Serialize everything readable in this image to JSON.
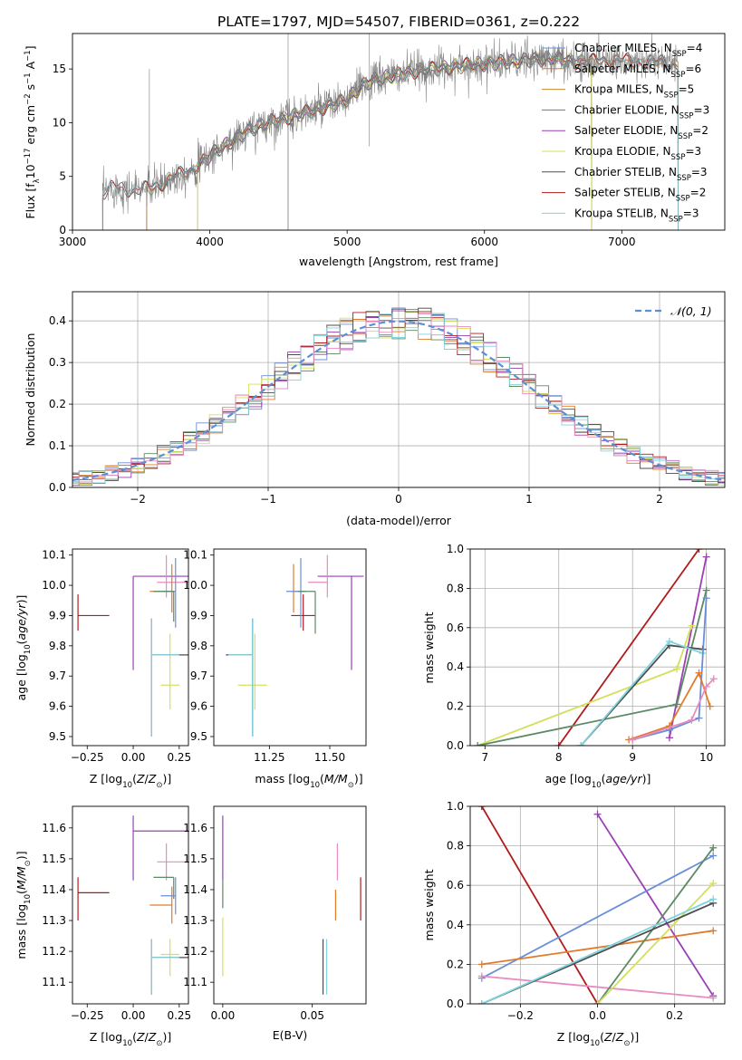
{
  "figure_title": "PLATE=1797, MJD=54507, FIBERID=0361, z=0.222",
  "colors": {
    "Chabrier MILES": "#6a8fd8",
    "Salpeter MILES": "#e07b2c",
    "Kroupa MILES": "#c9872f",
    "Chabrier ELODIE": "#5b8a64",
    "Salpeter ELODIE": "#9b3fb5",
    "Kroupa ELODIE": "#d4e05a",
    "Chabrier STELIB": "#4d4d4d",
    "Salpeter STELIB": "#b01c1c",
    "Kroupa STELIB": "#7fd3e0",
    "extra pink": "#e88bc0",
    "gaussian": "#5b8fd8"
  },
  "legend": [
    {
      "key": "Chabrier MILES",
      "label": "Chabrier MILES, N",
      "n": "4"
    },
    {
      "key": "Salpeter MILES",
      "label": "Salpeter MILES, N",
      "n": "6"
    },
    {
      "key": "Kroupa MILES",
      "label": "Kroupa MILES, N",
      "n": "5"
    },
    {
      "key": "Chabrier ELODIE",
      "label": "Chabrier ELODIE, N",
      "n": "3"
    },
    {
      "key": "Salpeter ELODIE",
      "label": "Salpeter ELODIE, N",
      "n": "2"
    },
    {
      "key": "Kroupa ELODIE",
      "label": "Kroupa ELODIE, N",
      "n": "3"
    },
    {
      "key": "Chabrier STELIB",
      "label": "Chabrier STELIB, N",
      "n": "3"
    },
    {
      "key": "Salpeter STELIB",
      "label": "Salpeter STELIB, N",
      "n": "2"
    },
    {
      "key": "Kroupa STELIB",
      "label": "Kroupa STELIB, N",
      "n": "3"
    }
  ],
  "chart_data": [
    {
      "id": "spectrum",
      "type": "line",
      "xlabel": "wavelength [Angstrom, rest frame]",
      "ylabel": "Flux [f",
      "xlim": [
        3000,
        7750
      ],
      "ylim": [
        0,
        18.3
      ],
      "xticks": [
        3000,
        4000,
        5000,
        6000,
        7000
      ],
      "yticks": [
        0,
        5,
        10,
        15
      ],
      "continuum": [
        [
          3220,
          3.4
        ],
        [
          3300,
          4.0
        ],
        [
          3450,
          3.7
        ],
        [
          3550,
          3.9
        ],
        [
          3650,
          4.3
        ],
        [
          3750,
          5.0
        ],
        [
          3850,
          5.6
        ],
        [
          3950,
          6.4
        ],
        [
          4050,
          7.4
        ],
        [
          4150,
          8.2
        ],
        [
          4300,
          9.4
        ],
        [
          4450,
          10.1
        ],
        [
          4600,
          10.6
        ],
        [
          4800,
          11.3
        ],
        [
          5000,
          12.1
        ],
        [
          5100,
          13.4
        ],
        [
          5200,
          14.0
        ],
        [
          5350,
          14.4
        ],
        [
          5500,
          14.8
        ],
        [
          5700,
          15.1
        ],
        [
          5900,
          15.4
        ],
        [
          6100,
          15.6
        ],
        [
          6300,
          15.8
        ],
        [
          6500,
          16.0
        ],
        [
          6700,
          15.6
        ],
        [
          6900,
          15.9
        ],
        [
          7100,
          15.7
        ],
        [
          7300,
          15.6
        ],
        [
          7400,
          15.5
        ]
      ]
    },
    {
      "id": "residuals",
      "type": "area",
      "xlabel": "(data-model)/error",
      "ylabel": "Normed distribution",
      "xlim": [
        -2.5,
        2.5
      ],
      "ylim": [
        0,
        0.47
      ],
      "xticks": [
        -2,
        -1,
        0,
        1,
        2
      ],
      "yticks": [
        0.0,
        0.1,
        0.2,
        0.3,
        0.4
      ],
      "legend_label": "𝒩(0, 1)",
      "grid": true
    },
    {
      "id": "age_vs_Z",
      "type": "scatter",
      "xlabel": "Z [log",
      "ylabel": "age  [log",
      "xlim": [
        -0.33,
        0.3
      ],
      "ylim": [
        9.47,
        10.12
      ],
      "xticks": [
        -0.25,
        0.0,
        0.25
      ],
      "yticks": [
        9.5,
        9.6,
        9.7,
        9.8,
        9.9,
        10.0,
        10.1
      ],
      "points": [
        {
          "key": "Salpeter STELIB",
          "x": -0.3,
          "y": 9.9,
          "xerr": [
            0.0,
            0.17
          ],
          "yerr": [
            0.05,
            0.07
          ]
        },
        {
          "key": "Salpeter ELODIE",
          "x": 0.0,
          "y": 10.03,
          "xerr": [
            0.0,
            0.3
          ],
          "yerr": [
            0.31,
            0.0
          ]
        },
        {
          "key": "extra pink",
          "x": 0.18,
          "y": 10.01,
          "xerr": [
            0.05,
            0.12
          ],
          "yerr": [
            0.05,
            0.09
          ]
        },
        {
          "key": "Salpeter MILES",
          "x": 0.21,
          "y": 9.98,
          "xerr": [
            0.12,
            0.0
          ],
          "yerr": [
            0.07,
            0.09
          ]
        },
        {
          "key": "Chabrier MILES",
          "x": 0.23,
          "y": 9.98,
          "xerr": [
            0.08,
            0.0
          ],
          "yerr": [
            0.12,
            0.11
          ]
        },
        {
          "key": "Chabrier ELODIE",
          "x": 0.22,
          "y": 9.98,
          "xerr": [
            0.11,
            0.0
          ],
          "yerr": [
            0.1,
            0.0
          ]
        },
        {
          "key": "Kroupa ELODIE",
          "x": 0.2,
          "y": 9.67,
          "xerr": [
            0.05,
            0.05
          ],
          "yerr": [
            0.08,
            0.17
          ]
        },
        {
          "key": "Chabrier STELIB",
          "x": 0.1,
          "y": 9.77,
          "xerr": [
            0.0,
            0.2
          ],
          "yerr": [
            0.27,
            0.12
          ]
        },
        {
          "key": "Kroupa STELIB",
          "x": 0.1,
          "y": 9.77,
          "xerr": [
            0.0,
            0.15
          ],
          "yerr": [
            0.27,
            0.12
          ]
        }
      ]
    },
    {
      "id": "age_vs_mass",
      "type": "scatter",
      "xlabel": "mass [log",
      "ylabel": "",
      "xlim": [
        11.02,
        11.65
      ],
      "ylim": [
        9.47,
        10.12
      ],
      "xticks": [
        11.25,
        11.5
      ],
      "yticks": [
        9.5,
        9.6,
        9.7,
        9.8,
        9.9,
        10.0,
        10.1
      ],
      "points": [
        {
          "key": "Salpeter STELIB",
          "x": 11.39,
          "y": 9.9,
          "xerr": [
            0.05,
            0.05
          ],
          "yerr": [
            0.05,
            0.07
          ]
        },
        {
          "key": "Salpeter ELODIE",
          "x": 11.59,
          "y": 10.03,
          "xerr": [
            0.14,
            0.05
          ],
          "yerr": [
            0.31,
            0.0
          ]
        },
        {
          "key": "extra pink",
          "x": 11.49,
          "y": 10.01,
          "xerr": [
            0.08,
            0.0
          ],
          "yerr": [
            0.05,
            0.09
          ]
        },
        {
          "key": "Salpeter MILES",
          "x": 11.35,
          "y": 9.98,
          "xerr": [
            0.0,
            0.05
          ],
          "yerr": [
            0.07,
            0.09
          ]
        },
        {
          "key": "Chabrier MILES",
          "x": 11.38,
          "y": 9.98,
          "xerr": [
            0.06,
            0.02
          ],
          "yerr": [
            0.12,
            0.11
          ]
        },
        {
          "key": "Chabrier ELODIE",
          "x": 11.44,
          "y": 9.98,
          "xerr": [
            0.07,
            0.0
          ],
          "yerr": [
            0.14,
            0.0
          ]
        },
        {
          "key": "Kroupa ELODIE",
          "x": 11.19,
          "y": 9.67,
          "xerr": [
            0.07,
            0.05
          ],
          "yerr": [
            0.08,
            0.17
          ]
        },
        {
          "key": "Chabrier STELIB",
          "x": 11.18,
          "y": 9.77,
          "xerr": [
            0.11,
            0.0
          ],
          "yerr": [
            0.27,
            0.12
          ]
        },
        {
          "key": "Kroupa STELIB",
          "x": 11.18,
          "y": 9.77,
          "xerr": [
            0.1,
            0.0
          ],
          "yerr": [
            0.27,
            0.12
          ]
        }
      ]
    },
    {
      "id": "weight_vs_age",
      "type": "line",
      "xlabel": "age  [log",
      "ylabel": "mass weight",
      "xlim": [
        6.8,
        10.25
      ],
      "ylim": [
        0,
        1.0
      ],
      "xticks": [
        7,
        8,
        9,
        10
      ],
      "yticks": [
        0.0,
        0.2,
        0.4,
        0.6,
        0.8,
        1.0
      ],
      "grid": true,
      "series": [
        {
          "key": "Salpeter STELIB",
          "x": [
            8.0,
            9.9
          ],
          "y": [
            0.0,
            1.0
          ]
        },
        {
          "key": "Salpeter ELODIE",
          "x": [
            9.5,
            10.0
          ],
          "y": [
            0.04,
            0.96
          ]
        },
        {
          "key": "Kroupa ELODIE",
          "x": [
            6.9,
            9.6,
            9.8
          ],
          "y": [
            0.0,
            0.39,
            0.61
          ]
        },
        {
          "key": "Chabrier ELODIE",
          "x": [
            6.9,
            9.6,
            10.0
          ],
          "y": [
            0.0,
            0.21,
            0.79
          ]
        },
        {
          "key": "Chabrier STELIB",
          "x": [
            8.3,
            9.5,
            9.95
          ],
          "y": [
            0.0,
            0.51,
            0.49
          ]
        },
        {
          "key": "Kroupa STELIB",
          "x": [
            8.3,
            9.5,
            9.95
          ],
          "y": [
            0.0,
            0.53,
            0.47
          ]
        },
        {
          "key": "Chabrier MILES",
          "x": [
            9.0,
            9.5,
            9.9,
            10.0
          ],
          "y": [
            0.03,
            0.08,
            0.14,
            0.75
          ]
        },
        {
          "key": "Salpeter MILES",
          "x": [
            8.95,
            9.5,
            9.9,
            10.05
          ],
          "y": [
            0.03,
            0.1,
            0.37,
            0.2
          ]
        },
        {
          "key": "extra pink",
          "x": [
            9.0,
            9.8,
            10.0,
            10.1
          ],
          "y": [
            0.03,
            0.13,
            0.3,
            0.34
          ]
        }
      ]
    },
    {
      "id": "mass_vs_Z",
      "type": "scatter",
      "xlabel": "Z [log",
      "ylabel": "mass [log",
      "xlim": [
        -0.33,
        0.3
      ],
      "ylim": [
        11.03,
        11.67
      ],
      "xticks": [
        -0.25,
        0.0,
        0.25
      ],
      "yticks": [
        11.1,
        11.2,
        11.3,
        11.4,
        11.5,
        11.6
      ],
      "points": [
        {
          "key": "Salpeter STELIB",
          "x": -0.3,
          "y": 11.39,
          "xerr": [
            0.0,
            0.17
          ],
          "yerr": [
            0.09,
            0.05
          ]
        },
        {
          "key": "Salpeter ELODIE",
          "x": 0.0,
          "y": 11.59,
          "xerr": [
            0.0,
            0.3
          ],
          "yerr": [
            0.16,
            0.05
          ]
        },
        {
          "key": "extra pink",
          "x": 0.18,
          "y": 11.49,
          "xerr": [
            0.05,
            0.12
          ],
          "yerr": [
            0.06,
            0.06
          ]
        },
        {
          "key": "Chabrier ELODIE",
          "x": 0.22,
          "y": 11.44,
          "xerr": [
            0.11,
            0.0
          ],
          "yerr": [
            0.07,
            0.0
          ]
        },
        {
          "key": "Chabrier MILES",
          "x": 0.23,
          "y": 11.38,
          "xerr": [
            0.08,
            0.0
          ],
          "yerr": [
            0.06,
            0.06
          ]
        },
        {
          "key": "Salpeter MILES",
          "x": 0.21,
          "y": 11.35,
          "xerr": [
            0.12,
            0.0
          ],
          "yerr": [
            0.06,
            0.06
          ]
        },
        {
          "key": "Kroupa ELODIE",
          "x": 0.2,
          "y": 11.19,
          "xerr": [
            0.05,
            0.05
          ],
          "yerr": [
            0.07,
            0.05
          ]
        },
        {
          "key": "Chabrier STELIB",
          "x": 0.1,
          "y": 11.18,
          "xerr": [
            0.0,
            0.2
          ],
          "yerr": [
            0.12,
            0.06
          ]
        },
        {
          "key": "Kroupa STELIB",
          "x": 0.1,
          "y": 11.18,
          "xerr": [
            0.0,
            0.15
          ],
          "yerr": [
            0.12,
            0.06
          ]
        }
      ]
    },
    {
      "id": "mass_vs_ebv",
      "type": "scatter",
      "xlabel": "E(B-V)",
      "ylabel": "",
      "xlim": [
        -0.005,
        0.08
      ],
      "ylim": [
        11.03,
        11.67
      ],
      "xticks": [
        0.0,
        0.05
      ],
      "yticks": [
        11.1,
        11.2,
        11.3,
        11.4,
        11.5,
        11.6
      ],
      "points": [
        {
          "key": "Salpeter ELODIE",
          "x": 0.0,
          "y": 11.59,
          "yerr": [
            0.16,
            0.05
          ]
        },
        {
          "key": "Chabrier ELODIE",
          "x": 0.0,
          "y": 11.4,
          "yerr": [
            0.06,
            0.03
          ]
        },
        {
          "key": "Kroupa ELODIE",
          "x": 0.0,
          "y": 11.19,
          "yerr": [
            0.07,
            0.12
          ]
        },
        {
          "key": "Chabrier STELIB",
          "x": 0.056,
          "y": 11.18,
          "yerr": [
            0.12,
            0.06
          ]
        },
        {
          "key": "Kroupa STELIB",
          "x": 0.058,
          "y": 11.18,
          "yerr": [
            0.12,
            0.06
          ]
        },
        {
          "key": "Salpeter MILES",
          "x": 0.063,
          "y": 11.35,
          "yerr": [
            0.05,
            0.05
          ]
        },
        {
          "key": "extra pink",
          "x": 0.064,
          "y": 11.49,
          "yerr": [
            0.06,
            0.06
          ]
        },
        {
          "key": "Salpeter STELIB",
          "x": 0.077,
          "y": 11.39,
          "yerr": [
            0.09,
            0.05
          ]
        }
      ]
    },
    {
      "id": "weight_vs_Z",
      "type": "line",
      "xlabel": "Z [log",
      "ylabel": "mass weight",
      "xlim": [
        -0.33,
        0.33
      ],
      "ylim": [
        0,
        1.0
      ],
      "xticks": [
        -0.2,
        0.0,
        0.2
      ],
      "yticks": [
        0.0,
        0.2,
        0.4,
        0.6,
        0.8,
        1.0
      ],
      "grid": true,
      "series": [
        {
          "key": "Salpeter STELIB",
          "x": [
            -0.3,
            0.0
          ],
          "y": [
            1.0,
            0.0
          ]
        },
        {
          "key": "Salpeter ELODIE",
          "x": [
            0.0,
            0.3
          ],
          "y": [
            0.96,
            0.04
          ]
        },
        {
          "key": "Chabrier MILES",
          "x": [
            -0.3,
            0.3
          ],
          "y": [
            0.13,
            0.75
          ]
        },
        {
          "key": "Salpeter MILES",
          "x": [
            -0.3,
            0.3
          ],
          "y": [
            0.2,
            0.37
          ]
        },
        {
          "key": "extra pink",
          "x": [
            -0.3,
            0.3
          ],
          "y": [
            0.14,
            0.03
          ]
        },
        {
          "key": "Chabrier ELODIE",
          "x": [
            0.0,
            0.3
          ],
          "y": [
            0.0,
            0.79
          ]
        },
        {
          "key": "Kroupa ELODIE",
          "x": [
            0.0,
            0.3
          ],
          "y": [
            0.0,
            0.61
          ]
        },
        {
          "key": "Chabrier STELIB",
          "x": [
            -0.3,
            0.3
          ],
          "y": [
            0.0,
            0.51
          ]
        },
        {
          "key": "Kroupa STELIB",
          "x": [
            -0.3,
            0.3
          ],
          "y": [
            0.0,
            0.53
          ]
        }
      ]
    }
  ]
}
